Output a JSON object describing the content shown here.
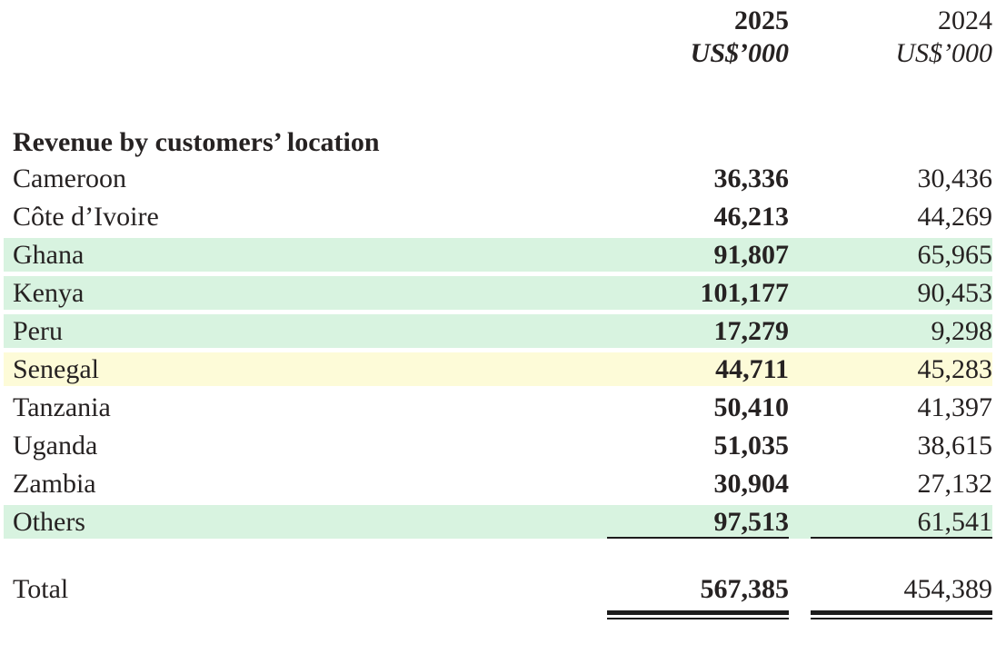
{
  "table": {
    "columns": [
      {
        "year": "2025",
        "unit": "US$’000"
      },
      {
        "year": "2024",
        "unit": "US$’000"
      }
    ],
    "section_title": "Revenue by customers’ location",
    "rows": [
      {
        "label": "Cameroon",
        "v2025": "36,336",
        "v2024": "30,436",
        "highlight": "none"
      },
      {
        "label": "Côte d’Ivoire",
        "v2025": "46,213",
        "v2024": "44,269",
        "highlight": "none"
      },
      {
        "label": "Ghana",
        "v2025": "91,807",
        "v2024": "65,965",
        "highlight": "green"
      },
      {
        "label": "Kenya",
        "v2025": "101,177",
        "v2024": "90,453",
        "highlight": "green"
      },
      {
        "label": "Peru",
        "v2025": "17,279",
        "v2024": "9,298",
        "highlight": "green"
      },
      {
        "label": "Senegal",
        "v2025": "44,711",
        "v2024": "45,283",
        "highlight": "yellow"
      },
      {
        "label": "Tanzania",
        "v2025": "50,410",
        "v2024": "41,397",
        "highlight": "none"
      },
      {
        "label": "Uganda",
        "v2025": "51,035",
        "v2024": "38,615",
        "highlight": "none"
      },
      {
        "label": "Zambia",
        "v2025": "30,904",
        "v2024": "27,132",
        "highlight": "none"
      },
      {
        "label": "Others",
        "v2025": "97,513",
        "v2024": "61,541",
        "highlight": "green",
        "underline": true
      }
    ],
    "total": {
      "label": "Total",
      "v2025": "567,385",
      "v2024": "454,389"
    }
  },
  "colors": {
    "highlight_green": "#d8f3e0",
    "highlight_yellow": "#fdfbd8",
    "text": "#262222",
    "rule": "#1c1c1c",
    "page_bg": "#ffffff"
  }
}
